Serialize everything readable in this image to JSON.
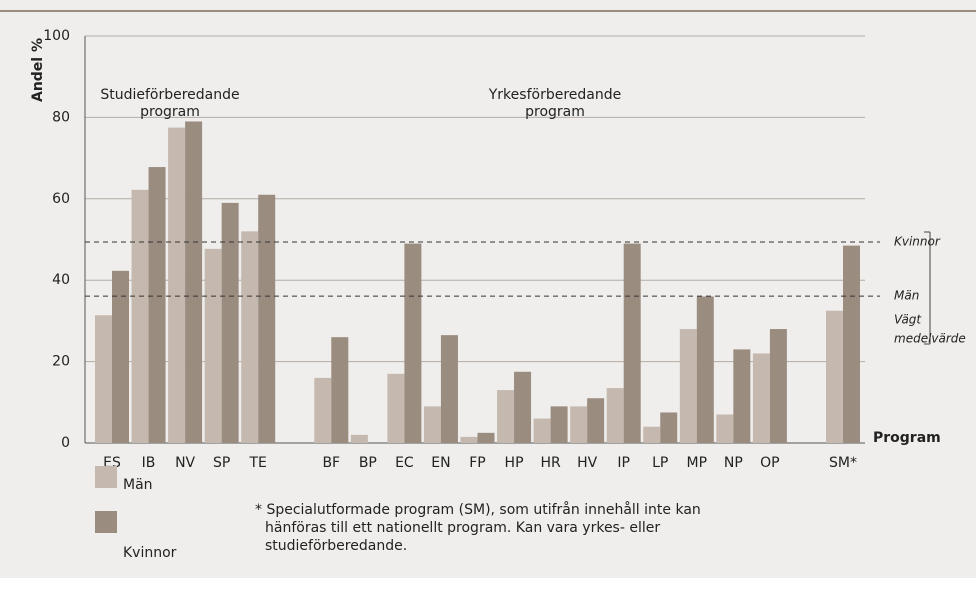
{
  "chart_data": {
    "type": "bar",
    "y_label": "Andel %",
    "x_label": "Program",
    "categories": [
      "ES",
      "IB",
      "NV",
      "SP",
      "TE",
      null,
      "BF",
      "BP",
      "EC",
      "EN",
      "FP",
      "HP",
      "HR",
      "HV",
      "IP",
      "LP",
      "MP",
      "NP",
      "OP",
      null,
      "SM*"
    ],
    "series": [
      {
        "name": "Män",
        "color": "#c5b9af",
        "values": [
          31.4,
          62.2,
          77.5,
          47.7,
          52,
          null,
          16,
          2,
          17,
          9,
          1.5,
          13,
          6,
          9,
          13.5,
          4,
          28,
          7,
          22,
          null,
          32.5
        ]
      },
      {
        "name": "Kvinnor",
        "color": "#9b8c80",
        "values": [
          42.3,
          67.8,
          79,
          59,
          61,
          null,
          26,
          0,
          49,
          26.5,
          2.5,
          17.5,
          9,
          11,
          49,
          7.5,
          36,
          23,
          28,
          null,
          48.5
        ]
      }
    ],
    "ylim": [
      0,
      100
    ],
    "yticks": [
      0,
      20,
      40,
      60,
      80,
      100
    ],
    "grid": true,
    "reference_lines": [
      {
        "label": "Kvinnor",
        "value": 49.4
      },
      {
        "label": "Män",
        "value": 36.1
      }
    ],
    "reference_note": [
      "Vägt",
      "medelvärde"
    ],
    "annotations": [
      [
        "Studieförberedande",
        "program"
      ],
      [
        "Yrkesförberedande",
        "program"
      ]
    ],
    "footnote": [
      "* Specialutformade program (SM), som utifrån innehåll inte kan",
      "hänföras till ett nationellt program. Kan vara yrkes- eller",
      "studieförberedande."
    ]
  }
}
